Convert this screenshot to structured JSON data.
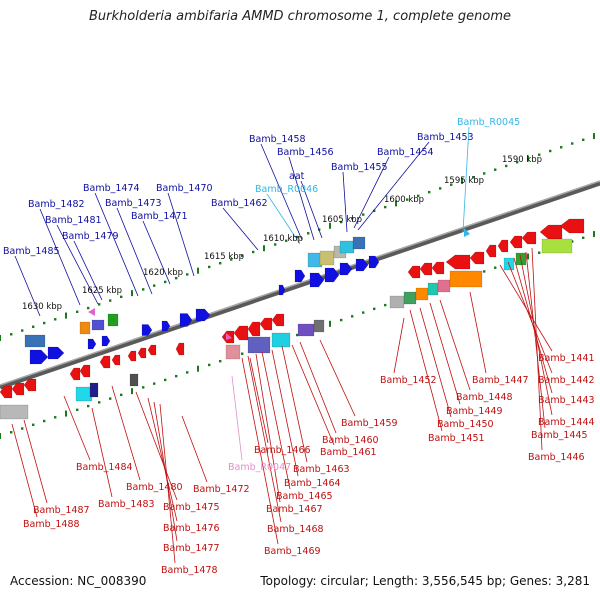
{
  "title": "Burkholderia ambifaria AMMD chromosome 1, complete genome",
  "footer": {
    "accession": "Accession: NC_008390",
    "topology": "Topology: circular; Length: 3,556,545 bp; Genes: 3,281"
  },
  "colors": {
    "backbone": "#7a7a7a",
    "forward_label": "#1010a0",
    "reverse_label": "#c01010",
    "rna_label_blue": "#35b6e8",
    "rna_label_pink": "#e48ec8",
    "tick": "#1a7a1a"
  },
  "scale_labels": [
    "1590 kbp",
    "1595 kbp",
    "1600 kbp",
    "1605 kbp",
    "1610 kbp",
    "1615 kbp",
    "1620 kbp",
    "1625 kbp",
    "1630 kbp"
  ],
  "forward_labels": [
    "Bamb_R0045",
    "Bamb_1458",
    "Bamb_1453",
    "Bamb_1456",
    "Bamb_1454",
    "aat",
    "Bamb_1455",
    "Bamb_1474",
    "Bamb_1470",
    "Bamb_R0046",
    "Bamb_1482",
    "Bamb_1473",
    "Bamb_1462",
    "Bamb_1481",
    "Bamb_1471",
    "Bamb_1479",
    "Bamb_1485"
  ],
  "reverse_labels": [
    "Bamb_1441",
    "Bamb_1452",
    "Bamb_1447",
    "Bamb_1442",
    "Bamb_1448",
    "Bamb_1443",
    "Bamb_1449",
    "Bamb_1444",
    "Bamb_1450",
    "Bamb_1445",
    "Bamb_1451",
    "Bamb_1446",
    "Bamb_1459",
    "Bamb_1460",
    "Bamb_1466",
    "Bamb_1461",
    "Bamb_R0047",
    "Bamb_1484",
    "Bamb_1463",
    "Bamb_1464",
    "Bamb_1480",
    "Bamb_1472",
    "Bamb_1465",
    "Bamb_1483",
    "Bamb_1475",
    "Bamb_1487",
    "Bamb_1467",
    "Bamb_1488",
    "Bamb_1476",
    "Bamb_1468",
    "Bamb_1477",
    "Bamb_1469",
    "Bamb_1478"
  ]
}
